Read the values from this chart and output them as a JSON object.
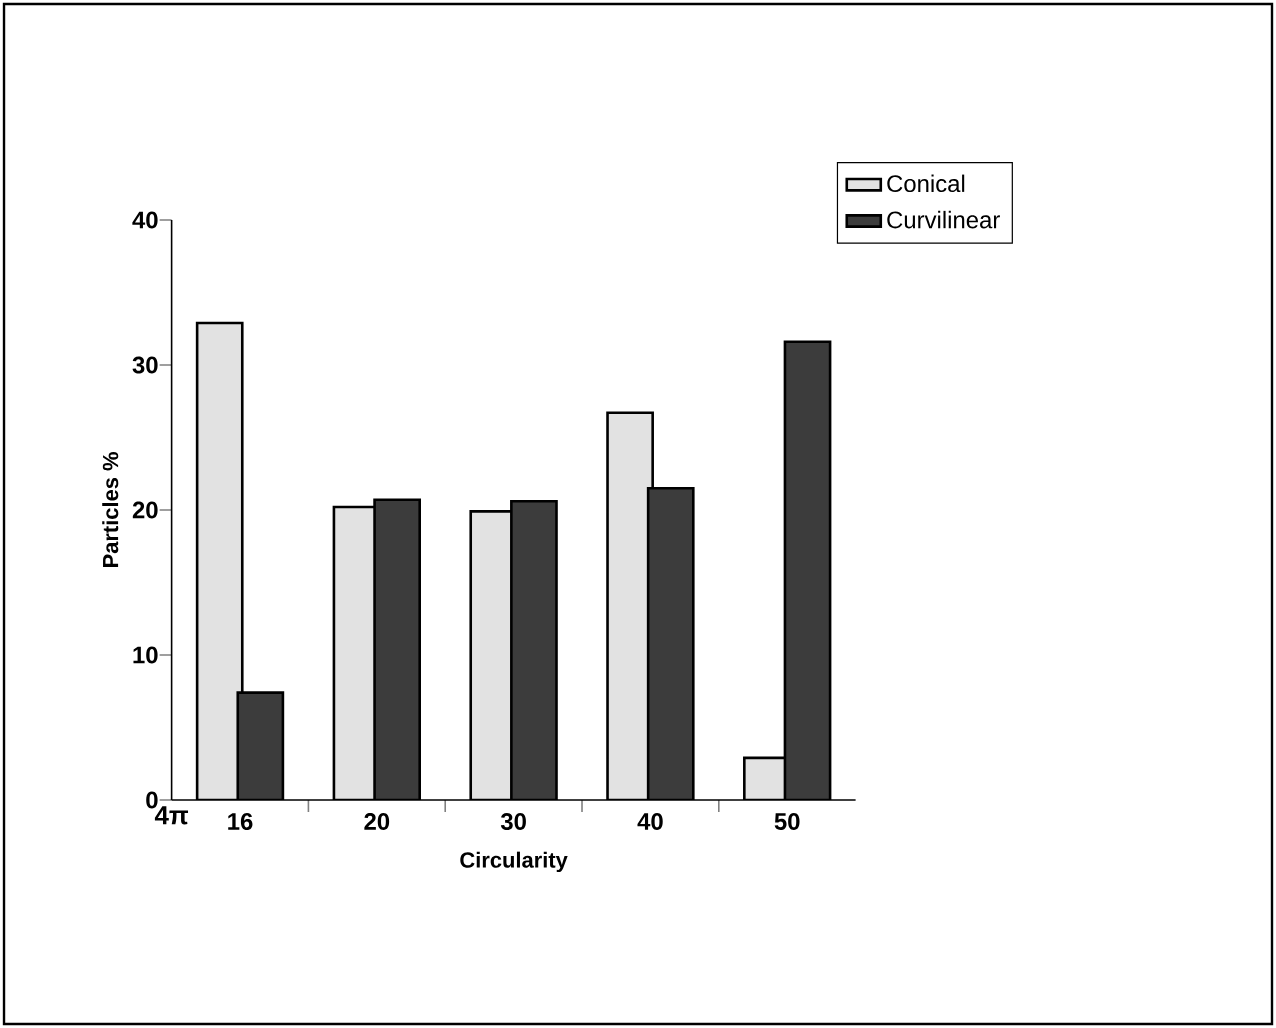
{
  "chart_data": {
    "type": "bar",
    "xlabel": "Circularity",
    "ylabel": "Particles %",
    "categories": [
      "16",
      "20",
      "30",
      "40",
      "50"
    ],
    "series": [
      {
        "name": "Conical",
        "color": "#e2e2e2",
        "values": [
          32.9,
          20.2,
          19.9,
          26.7,
          2.9
        ]
      },
      {
        "name": "Curvilinear",
        "color": "#3c3c3c",
        "values": [
          7.4,
          20.7,
          20.6,
          21.5,
          31.6
        ]
      }
    ],
    "ylim": [
      0,
      40
    ],
    "yticks": [
      0,
      10,
      20,
      30,
      40
    ],
    "legend": "top right",
    "annotations": [
      "4π"
    ]
  }
}
